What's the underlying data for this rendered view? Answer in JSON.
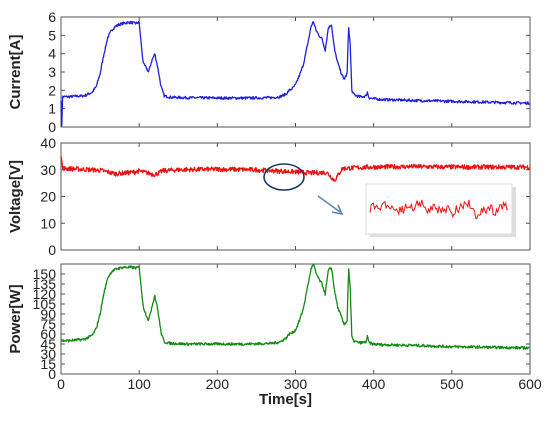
{
  "chart_data": [
    {
      "type": "line",
      "ylabel": "Current[A]",
      "xlabel": "",
      "xlim": [
        0,
        600
      ],
      "ylim": [
        0,
        6
      ],
      "yticks": [
        0,
        1,
        2,
        3,
        4,
        5,
        6
      ],
      "xticks": [],
      "grid": false,
      "color": "#1f1fe0",
      "series": [
        {
          "x": [
            0,
            1,
            2,
            10,
            20,
            30,
            40,
            45,
            50,
            55,
            60,
            65,
            70,
            75,
            80,
            85,
            90,
            95,
            100,
            102,
            104,
            106,
            108,
            112,
            116,
            120,
            124,
            128,
            132,
            140,
            160,
            200,
            240,
            270,
            280,
            288,
            292,
            296,
            300,
            305,
            310,
            315,
            320,
            323,
            326,
            330,
            334,
            338,
            342,
            346,
            350,
            354,
            358,
            362,
            366,
            368,
            370,
            372,
            374,
            378,
            382,
            386,
            390,
            392,
            394,
            398,
            410,
            450,
            500,
            550,
            600
          ],
          "y": [
            1.5,
            0.1,
            1.65,
            1.65,
            1.68,
            1.7,
            1.9,
            2.2,
            2.9,
            4.0,
            4.9,
            5.3,
            5.5,
            5.6,
            5.65,
            5.7,
            5.7,
            5.65,
            5.7,
            4.8,
            3.9,
            3.4,
            3.3,
            3.0,
            3.6,
            4.0,
            3.2,
            2.2,
            1.7,
            1.62,
            1.6,
            1.58,
            1.58,
            1.6,
            1.65,
            1.8,
            2.0,
            2.1,
            2.3,
            2.8,
            3.4,
            4.4,
            5.5,
            5.75,
            5.3,
            5.0,
            4.8,
            4.2,
            5.4,
            5.6,
            4.2,
            3.5,
            3.0,
            2.6,
            2.9,
            5.45,
            4.5,
            2.0,
            1.8,
            1.7,
            1.65,
            1.65,
            1.7,
            1.9,
            1.6,
            1.55,
            1.5,
            1.45,
            1.4,
            1.35,
            1.3
          ]
        }
      ]
    },
    {
      "type": "line",
      "ylabel": "Voltage[V]",
      "xlabel": "",
      "xlim": [
        0,
        600
      ],
      "ylim": [
        0,
        40
      ],
      "yticks": [
        0,
        10,
        20,
        30,
        40
      ],
      "xticks": [],
      "grid": false,
      "color": "#ee1111",
      "series": [
        {
          "x": [
            0,
            2,
            5,
            20,
            50,
            70,
            90,
            100,
            120,
            125,
            130,
            150,
            200,
            250,
            280,
            300,
            320,
            340,
            350,
            360,
            380,
            400,
            450,
            500,
            550,
            600
          ],
          "y": [
            36,
            30.5,
            30.5,
            30.3,
            29.8,
            28.5,
            29.0,
            29.5,
            28.2,
            28.8,
            29.6,
            30.0,
            30.2,
            30.0,
            29.5,
            29.2,
            28.8,
            29.0,
            26.0,
            30.5,
            30.8,
            31.0,
            31.2,
            31.0,
            31.0,
            31.0
          ]
        }
      ]
    },
    {
      "type": "line",
      "ylabel": "Power[W]",
      "xlabel": "Time[s]",
      "xlim": [
        0,
        600
      ],
      "ylim": [
        0,
        165
      ],
      "yticks": [
        0,
        15,
        30,
        45,
        60,
        75,
        90,
        105,
        120,
        135,
        150
      ],
      "xticks": [
        0,
        100,
        200,
        300,
        400,
        500,
        600
      ],
      "grid": false,
      "color": "#138a13",
      "series": [
        {
          "x": [
            0,
            2,
            10,
            20,
            30,
            40,
            45,
            50,
            55,
            60,
            65,
            70,
            75,
            80,
            85,
            90,
            95,
            100,
            102,
            104,
            106,
            108,
            112,
            116,
            120,
            124,
            128,
            132,
            140,
            160,
            200,
            240,
            270,
            280,
            288,
            292,
            296,
            300,
            305,
            310,
            315,
            320,
            323,
            326,
            330,
            334,
            338,
            342,
            346,
            350,
            354,
            358,
            362,
            366,
            368,
            370,
            372,
            374,
            378,
            382,
            386,
            390,
            392,
            394,
            398,
            410,
            450,
            500,
            550,
            600
          ],
          "y": [
            52,
            50,
            50,
            51,
            52,
            58,
            68,
            90,
            122,
            145,
            154,
            157,
            159,
            160,
            160,
            160,
            159,
            160,
            138,
            112,
            98,
            92,
            80,
            100,
            118,
            95,
            62,
            48,
            46,
            45,
            45,
            45,
            46,
            48,
            54,
            60,
            62,
            66,
            80,
            98,
            128,
            158,
            165,
            152,
            142,
            135,
            120,
            155,
            160,
            125,
            100,
            88,
            74,
            80,
            158,
            128,
            56,
            50,
            48,
            47,
            47,
            48,
            56,
            47,
            45,
            44,
            43,
            41,
            40,
            39
          ]
        }
      ]
    }
  ]
}
